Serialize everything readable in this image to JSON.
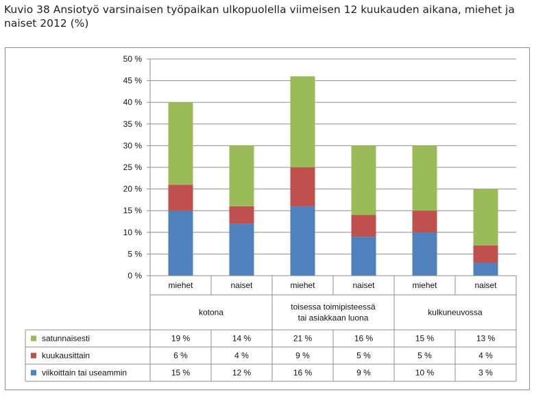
{
  "title": "Kuvio 38 Ansiotyö varsinaisen työpaikan ulkopuolella viimeisen 12 kuukauden aikana, miehet ja naiset 2012 (%)",
  "chart_data": {
    "type": "bar",
    "stacked": true,
    "ylim": [
      0,
      50
    ],
    "y_ticks": [
      "0 %",
      "5 %",
      "10 %",
      "15 %",
      "20 %",
      "25 %",
      "30 %",
      "35 %",
      "40 %",
      "45 %",
      "50 %"
    ],
    "grid": true,
    "categories": [
      "miehet",
      "naiset",
      "miehet",
      "naiset",
      "miehet",
      "naiset"
    ],
    "groups": [
      {
        "label": [
          "kotona"
        ],
        "span": [
          0,
          1
        ]
      },
      {
        "label": [
          "toisessa toimipisteessä",
          "tai asiakkaan luona"
        ],
        "span": [
          2,
          3
        ]
      },
      {
        "label": [
          "kulkuneuvossa"
        ],
        "span": [
          4,
          5
        ]
      }
    ],
    "series": [
      {
        "name": "satunnaisesti",
        "color": "#9bbb59",
        "values": [
          19,
          14,
          21,
          16,
          15,
          13
        ],
        "labels": [
          "19 %",
          "14 %",
          "21 %",
          "16 %",
          "15 %",
          "13 %"
        ]
      },
      {
        "name": "kuukausittain",
        "color": "#c0504d",
        "values": [
          6,
          4,
          9,
          5,
          5,
          4
        ],
        "labels": [
          "6 %",
          "4 %",
          "9 %",
          "5 %",
          "5 %",
          "4 %"
        ]
      },
      {
        "name": "viikoittain tai useammin",
        "color": "#4f81bd",
        "values": [
          15,
          12,
          16,
          9,
          10,
          3
        ],
        "labels": [
          "15 %",
          "12 %",
          "16 %",
          "9 %",
          "10 %",
          "3 %"
        ]
      }
    ],
    "stack_order_bottom_to_top": [
      2,
      1,
      0
    ],
    "legend_placement": "data-table-left"
  }
}
